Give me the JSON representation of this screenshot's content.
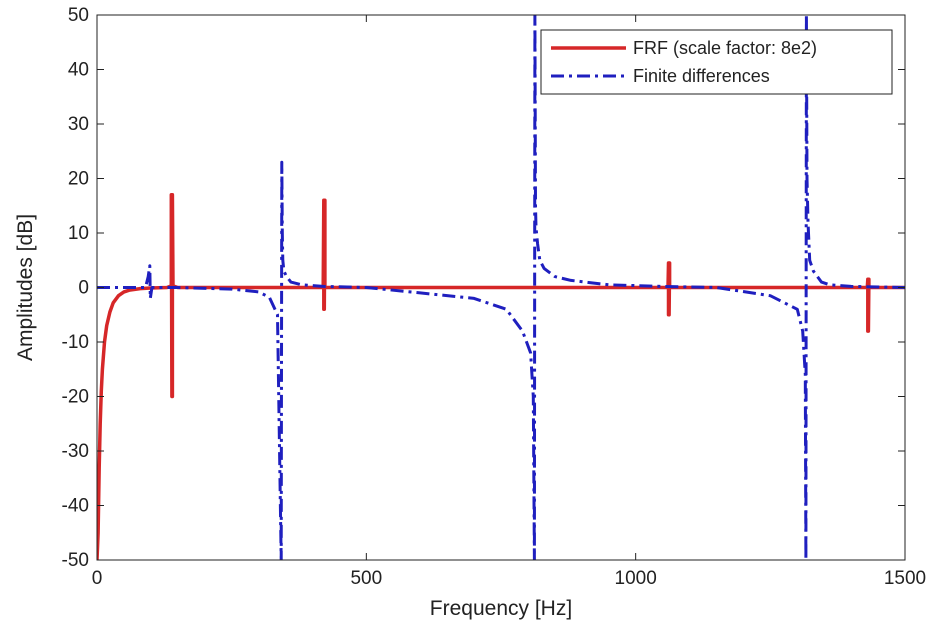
{
  "chart_data": {
    "type": "line",
    "title": "",
    "xlabel": "Frequency [Hz]",
    "ylabel": "Amplitudes [dB]",
    "xlim": [
      0,
      1500
    ],
    "ylim": [
      -50,
      50
    ],
    "xticks": [
      0,
      500,
      1000,
      1500
    ],
    "yticks": [
      -50,
      -40,
      -30,
      -20,
      -10,
      0,
      10,
      20,
      30,
      40,
      50
    ],
    "xtick_labels": [
      "0",
      "500",
      "1000",
      "1500"
    ],
    "ytick_labels": [
      "-50",
      "-40",
      "-30",
      "-20",
      "-10",
      "0",
      "10",
      "20",
      "30",
      "40",
      "50"
    ],
    "grid": false,
    "legend_position": "top-right",
    "series": [
      {
        "name": "FRF (scale factor: 8e2)",
        "color": "#d62728",
        "style": "solid",
        "x": [
          0,
          2,
          4,
          6,
          8,
          10,
          14,
          18,
          24,
          30,
          40,
          50,
          60,
          80,
          100,
          130,
          138,
          138,
          139,
          139,
          140,
          140,
          141,
          150,
          200,
          300,
          420,
          421,
          421,
          422,
          422,
          423,
          423,
          430,
          500,
          700,
          900,
          1060,
          1061,
          1061,
          1062,
          1062,
          1063,
          1063,
          1070,
          1200,
          1300,
          1430,
          1431,
          1431,
          1432,
          1432,
          1433,
          1433,
          1440,
          1500
        ],
        "values": [
          -50,
          -45,
          -33,
          -25,
          -19,
          -15,
          -10,
          -7,
          -4.5,
          -2.8,
          -1.5,
          -0.8,
          -0.5,
          -0.2,
          -0.1,
          0,
          0.3,
          17,
          -20,
          17,
          -20,
          17,
          0.3,
          0,
          0,
          0,
          0,
          16,
          -4,
          16,
          -4,
          16,
          0,
          0,
          0,
          0,
          0,
          0,
          4.5,
          -5,
          4.5,
          -5,
          4.5,
          0,
          0,
          0,
          0,
          0,
          1.5,
          -8,
          1.5,
          -8,
          1.5,
          0,
          0,
          0
        ]
      },
      {
        "name": "Finite differences",
        "color": "#1f1fbf",
        "style": "dashdot",
        "x": [
          0,
          90,
          95,
          98,
          99,
          102,
          110,
          150,
          250,
          300,
          320,
          335,
          342,
          343,
          344,
          345,
          347,
          352,
          360,
          380,
          420,
          500,
          600,
          700,
          760,
          790,
          805,
          810,
          812,
          813,
          814,
          815,
          818,
          822,
          830,
          850,
          880,
          950,
          1050,
          1150,
          1250,
          1300,
          1310,
          1315,
          1316,
          1317,
          1318,
          1320,
          1323,
          1330,
          1345,
          1360,
          1400,
          1500
        ],
        "values": [
          0,
          0,
          2,
          4,
          -2,
          0,
          0,
          0,
          -0.3,
          -0.8,
          -1.8,
          -5,
          -50,
          23,
          10,
          5,
          3,
          2,
          1,
          0.5,
          0.2,
          0,
          -1,
          -2,
          -4,
          -8,
          -12,
          -20,
          -50,
          50,
          15,
          11,
          8,
          5,
          3.5,
          2,
          1.3,
          0.5,
          0.2,
          0,
          -1.5,
          -4,
          -8,
          -16,
          -50,
          50,
          20,
          12,
          5,
          3,
          1,
          0.5,
          0.2,
          0
        ]
      }
    ]
  }
}
